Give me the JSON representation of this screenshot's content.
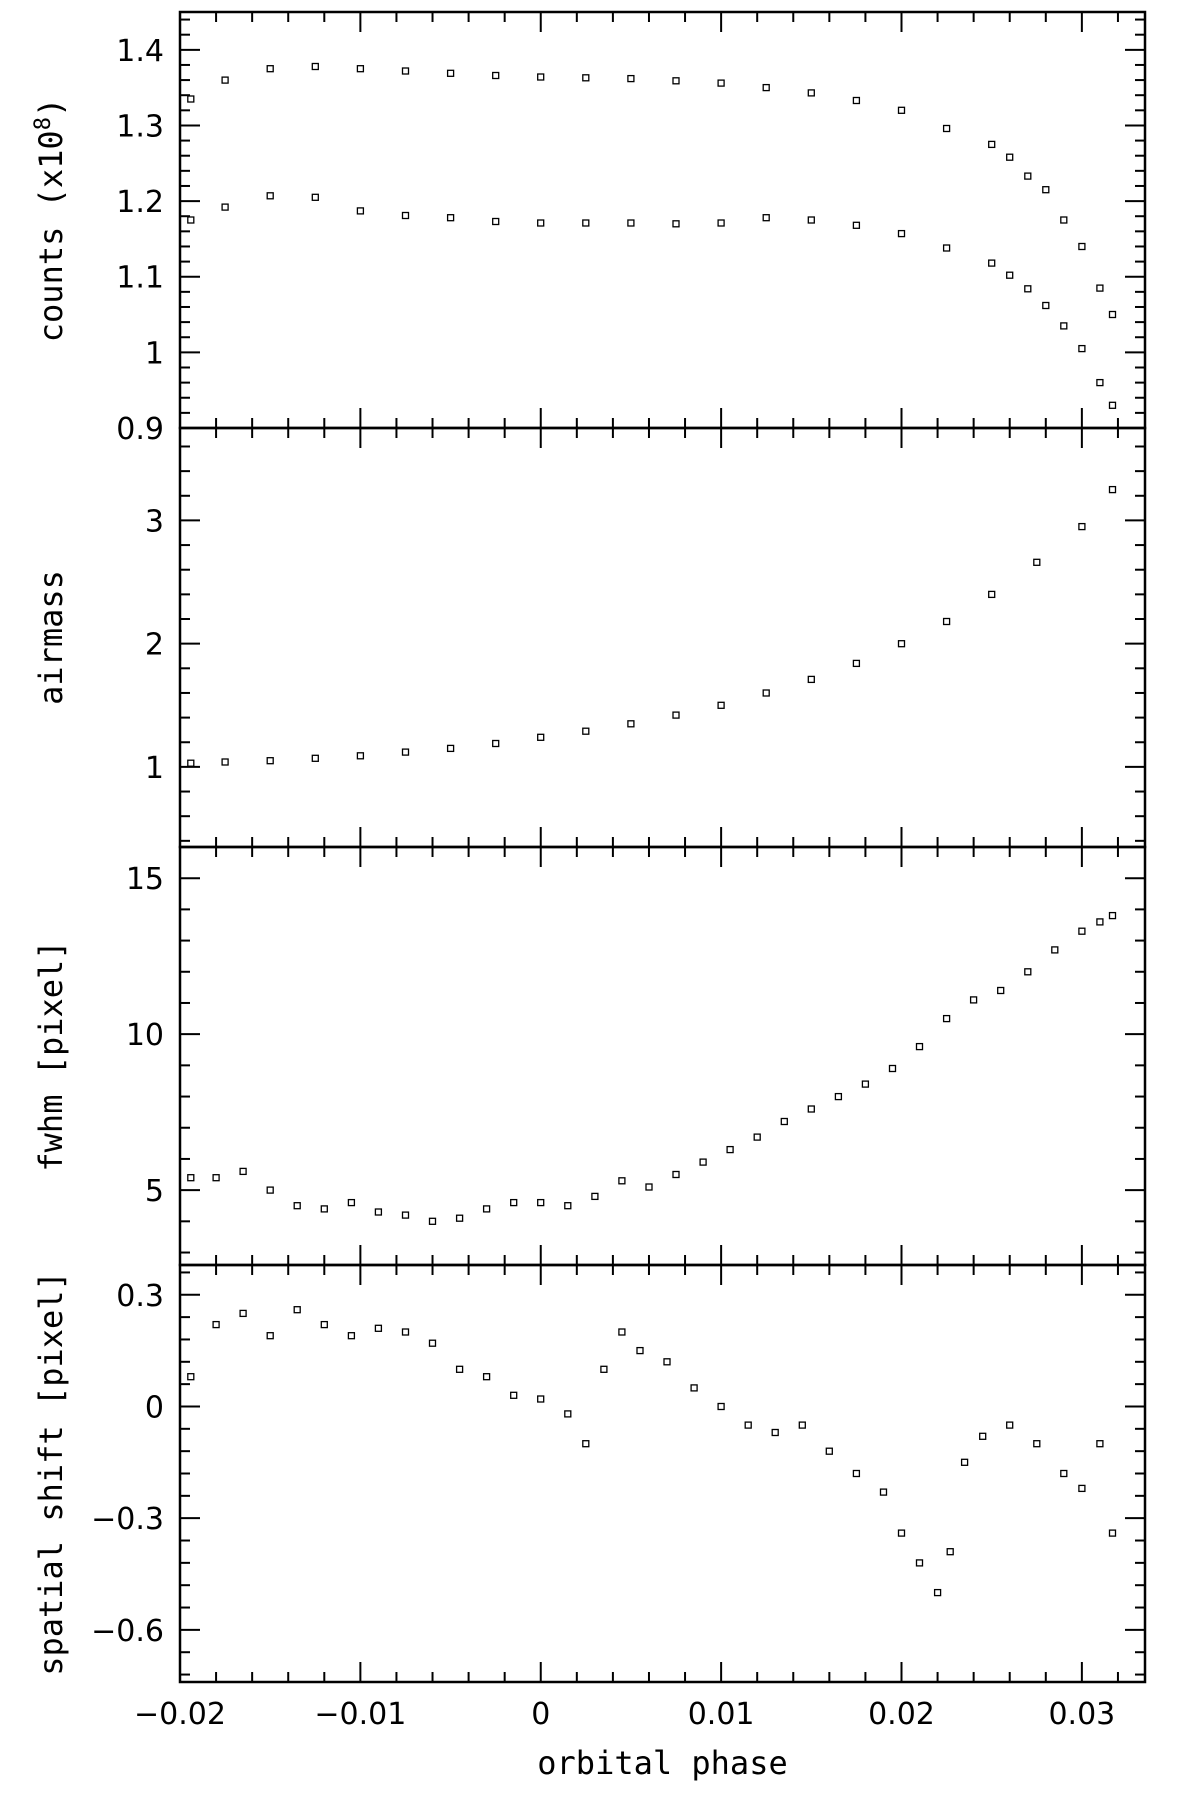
{
  "chart_data": [
    {
      "type": "scatter",
      "ylabel": "counts (x10",
      "ylabel_exp": "8",
      "ylabel_close": ")",
      "ylim": [
        0.9,
        1.45
      ],
      "yticks": [
        {
          "v": 0.9,
          "label": "0.9"
        },
        {
          "v": 1.0,
          "label": "1"
        },
        {
          "v": 1.1,
          "label": "1.1"
        },
        {
          "v": 1.2,
          "label": "1.2"
        },
        {
          "v": 1.3,
          "label": "1.3"
        },
        {
          "v": 1.4,
          "label": "1.4"
        }
      ],
      "series": [
        {
          "x": [
            -0.0194,
            -0.0175,
            -0.015,
            -0.0125,
            -0.01,
            -0.0075,
            -0.005,
            -0.0025,
            0.0,
            0.0025,
            0.005,
            0.0075,
            0.01,
            0.0125,
            0.015,
            0.0175,
            0.02,
            0.0225,
            0.025,
            0.026,
            0.027,
            0.028,
            0.029,
            0.03,
            0.031,
            0.0317
          ],
          "y": [
            1.335,
            1.36,
            1.375,
            1.378,
            1.375,
            1.372,
            1.369,
            1.366,
            1.364,
            1.363,
            1.362,
            1.359,
            1.356,
            1.35,
            1.343,
            1.333,
            1.32,
            1.296,
            1.275,
            1.258,
            1.233,
            1.215,
            1.175,
            1.14,
            1.085,
            1.05
          ]
        },
        {
          "x": [
            -0.0194,
            -0.0175,
            -0.015,
            -0.0125,
            -0.01,
            -0.0075,
            -0.005,
            -0.0025,
            0.0,
            0.0025,
            0.005,
            0.0075,
            0.01,
            0.0125,
            0.015,
            0.0175,
            0.02,
            0.0225,
            0.025,
            0.026,
            0.027,
            0.028,
            0.029,
            0.03,
            0.031,
            0.0317
          ],
          "y": [
            1.175,
            1.192,
            1.207,
            1.205,
            1.187,
            1.181,
            1.178,
            1.173,
            1.171,
            1.171,
            1.171,
            1.17,
            1.171,
            1.178,
            1.175,
            1.168,
            1.157,
            1.138,
            1.118,
            1.102,
            1.084,
            1.062,
            1.035,
            1.005,
            0.96,
            0.93
          ]
        }
      ]
    },
    {
      "type": "scatter",
      "ylabel": "airmass",
      "ylim": [
        0.35,
        3.75
      ],
      "yticks": [
        {
          "v": 1,
          "label": "1"
        },
        {
          "v": 2,
          "label": "2"
        },
        {
          "v": 3,
          "label": "3"
        }
      ],
      "series": [
        {
          "x": [
            -0.0194,
            -0.0175,
            -0.015,
            -0.0125,
            -0.01,
            -0.0075,
            -0.005,
            -0.0025,
            0.0,
            0.0025,
            0.005,
            0.0075,
            0.01,
            0.0125,
            0.015,
            0.0175,
            0.02,
            0.0225,
            0.025,
            0.0275,
            0.03,
            0.0317
          ],
          "y": [
            1.03,
            1.04,
            1.05,
            1.07,
            1.09,
            1.12,
            1.15,
            1.19,
            1.24,
            1.29,
            1.35,
            1.42,
            1.5,
            1.6,
            1.71,
            1.84,
            2.0,
            2.18,
            2.4,
            2.66,
            2.95,
            3.25
          ]
        }
      ]
    },
    {
      "type": "scatter",
      "ylabel": "fwhm [pixel]",
      "ylim": [
        2.6,
        16.0
      ],
      "yticks": [
        {
          "v": 5,
          "label": "5"
        },
        {
          "v": 10,
          "label": "10"
        },
        {
          "v": 15,
          "label": "15"
        }
      ],
      "series": [
        {
          "x": [
            -0.0194,
            -0.018,
            -0.0165,
            -0.015,
            -0.0135,
            -0.012,
            -0.0105,
            -0.009,
            -0.0075,
            -0.006,
            -0.0045,
            -0.003,
            -0.0015,
            0.0,
            0.0015,
            0.003,
            0.0045,
            0.006,
            0.0075,
            0.009,
            0.0105,
            0.012,
            0.0135,
            0.015,
            0.0165,
            0.018,
            0.0195,
            0.021,
            0.0225,
            0.024,
            0.0255,
            0.027,
            0.0285,
            0.03,
            0.031,
            0.0317
          ],
          "y": [
            5.4,
            5.4,
            5.6,
            5.0,
            4.5,
            4.4,
            4.6,
            4.3,
            4.2,
            4.0,
            4.1,
            4.4,
            4.6,
            4.6,
            4.5,
            4.8,
            5.3,
            5.1,
            5.5,
            5.9,
            6.3,
            6.7,
            7.2,
            7.6,
            8.0,
            8.4,
            8.9,
            9.6,
            10.5,
            11.1,
            11.4,
            12.0,
            12.7,
            13.3,
            13.6,
            13.8
          ]
        }
      ]
    },
    {
      "type": "scatter",
      "ylabel": "spatial shift [pixel]",
      "xlabel": "orbital phase",
      "xlim": [
        -0.02,
        0.0335
      ],
      "ylim": [
        -0.74,
        0.38
      ],
      "yticks": [
        {
          "v": 0.3,
          "label": "0.3"
        },
        {
          "v": 0,
          "label": "0"
        },
        {
          "v": -0.3,
          "label": "-0.3"
        },
        {
          "v": -0.6,
          "label": "-0.6"
        }
      ],
      "xticks": [
        {
          "v": -0.02,
          "label": "-0.02"
        },
        {
          "v": -0.01,
          "label": "-0.01"
        },
        {
          "v": 0,
          "label": "0"
        },
        {
          "v": 0.01,
          "label": "0.01"
        },
        {
          "v": 0.02,
          "label": "0.02"
        },
        {
          "v": 0.03,
          "label": "0.03"
        }
      ],
      "series": [
        {
          "x": [
            -0.0194,
            -0.018,
            -0.0165,
            -0.015,
            -0.0135,
            -0.012,
            -0.0105,
            -0.009,
            -0.0075,
            -0.006,
            -0.0045,
            -0.003,
            -0.0015,
            0.0,
            0.0015,
            0.0025,
            0.0035,
            0.0045,
            0.0055,
            0.007,
            0.0085,
            0.01,
            0.0115,
            0.013,
            0.0145,
            0.016,
            0.0175,
            0.019,
            0.02,
            0.021,
            0.022,
            0.0227,
            0.0235,
            0.0245,
            0.026,
            0.0275,
            0.029,
            0.03,
            0.031,
            0.0317
          ],
          "y": [
            0.08,
            0.22,
            0.25,
            0.19,
            0.26,
            0.22,
            0.19,
            0.21,
            0.2,
            0.17,
            0.1,
            0.08,
            0.03,
            0.02,
            -0.02,
            -0.1,
            0.1,
            0.2,
            0.15,
            0.12,
            0.05,
            0.0,
            -0.05,
            -0.07,
            -0.05,
            -0.12,
            -0.18,
            -0.23,
            -0.34,
            -0.42,
            -0.5,
            -0.39,
            -0.15,
            -0.08,
            -0.05,
            -0.1,
            -0.18,
            -0.22,
            -0.1,
            -0.34
          ]
        }
      ]
    }
  ]
}
